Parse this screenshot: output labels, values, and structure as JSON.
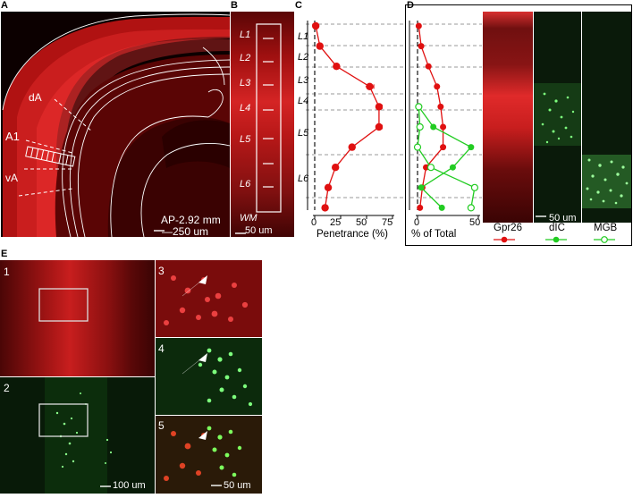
{
  "panels": {
    "A": {
      "label": "A",
      "regions": [
        "dA",
        "A1",
        "vA"
      ],
      "coord": "AP-2.92 mm",
      "scale": "250 um"
    },
    "B": {
      "label": "B",
      "layers": [
        "L1",
        "L2",
        "L3",
        "L4",
        "L5",
        "L6"
      ],
      "wm": "WM",
      "scale": "50 um"
    },
    "C": {
      "label": "C",
      "layers": [
        "L1",
        "L2",
        "L3",
        "L4",
        "L5",
        "L6"
      ],
      "xlabel": "Penetrance (%)",
      "xticks": [
        "0",
        "25",
        "50",
        "75"
      ]
    },
    "D": {
      "label": "D",
      "xlabel": "% of Total",
      "xticks": [
        "0",
        "50"
      ],
      "image_labels": [
        "Gpr26",
        "dIC",
        "MGB"
      ],
      "scale": "50 um"
    },
    "E": {
      "label": "E",
      "sub": [
        "1",
        "2",
        "3",
        "4",
        "5"
      ],
      "scale_left": "100 um",
      "scale_right": "50 um"
    }
  },
  "chart_data": [
    {
      "type": "line",
      "panel": "C",
      "xlabel": "Penetrance (%)",
      "xlim": [
        0,
        75
      ],
      "xticks": [
        0,
        25,
        50,
        75
      ],
      "series": [
        {
          "color": "#e01010",
          "points": [
            {
              "depth": 1,
              "x": 1,
              "err": 0
            },
            {
              "depth": 2,
              "x": 5,
              "err": 0
            },
            {
              "depth": 3,
              "x": 21,
              "err": 0
            },
            {
              "depth": 4,
              "x": 53,
              "err": 4
            },
            {
              "depth": 5,
              "x": 62,
              "err": 3
            },
            {
              "depth": 6,
              "x": 62,
              "err": 3
            },
            {
              "depth": 7,
              "x": 36,
              "err": 0
            },
            {
              "depth": 8,
              "x": 20,
              "err": 0
            },
            {
              "depth": 9,
              "x": 13,
              "err": 0
            },
            {
              "depth": 10,
              "x": 10,
              "err": 0
            }
          ]
        }
      ]
    },
    {
      "type": "line",
      "panel": "D",
      "xlabel": "% of Total",
      "xlim": [
        0,
        50
      ],
      "xticks": [
        0,
        50
      ],
      "series": [
        {
          "name": "Gpr26",
          "color": "#e01010",
          "marker": "filled",
          "points": [
            {
              "depth": 1,
              "x": 1
            },
            {
              "depth": 2,
              "x": 3
            },
            {
              "depth": 3,
              "x": 9
            },
            {
              "depth": 4,
              "x": 16
            },
            {
              "depth": 5,
              "x": 19
            },
            {
              "depth": 6,
              "x": 21
            },
            {
              "depth": 7,
              "x": 21
            },
            {
              "depth": 8,
              "x": 7
            },
            {
              "depth": 9,
              "x": 4
            },
            {
              "depth": 10,
              "x": 2
            }
          ]
        },
        {
          "name": "dIC",
          "color": "#22cc22",
          "marker": "filled",
          "points": [
            {
              "depth": 5,
              "x": 1
            },
            {
              "depth": 6,
              "x": 13
            },
            {
              "depth": 7,
              "x": 44
            },
            {
              "depth": 8,
              "x": 29
            },
            {
              "depth": 9,
              "x": 3
            },
            {
              "depth": 10,
              "x": 20
            }
          ]
        },
        {
          "name": "MGB",
          "color": "#22cc22",
          "marker": "open",
          "points": [
            {
              "depth": 5,
              "x": 1
            },
            {
              "depth": 6,
              "x": 2
            },
            {
              "depth": 7,
              "x": 0
            },
            {
              "depth": 8,
              "x": 11
            },
            {
              "depth": 9,
              "x": 47
            },
            {
              "depth": 10,
              "x": 44
            }
          ]
        }
      ]
    }
  ]
}
